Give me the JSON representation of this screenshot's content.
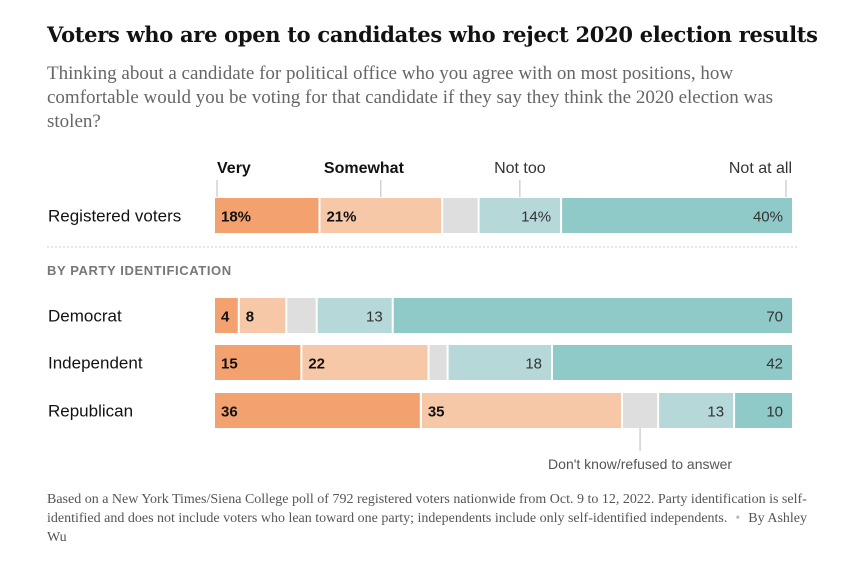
{
  "title": "Voters who are open to candidates who reject 2020 election results",
  "subtitle": "Thinking about a candidate for political office who you agree with on most positions, how comfortable would you be voting for that candidate if they say they think the 2020 election was stolen?",
  "footnote": {
    "text": "Based on a New York Times/Siena College poll of 792 registered voters nationwide from Oct. 9 to 12, 2022. Party identification is self-identified and does not include voters who lean toward one party; independents include only self-identified independents.",
    "byline": "By Ashley Wu"
  },
  "colors": {
    "very": "#f3a16e",
    "somewhat": "#f7c8a7",
    "dk": "#dedede",
    "not_too": "#b6d8d8",
    "not_at_all": "#8fcac8"
  },
  "chart_data": {
    "type": "bar",
    "orientation": "horizontal",
    "stacked": true,
    "categories_order": [
      "Very",
      "Somewhat",
      "Don't know/refused to answer",
      "Not too",
      "Not at all"
    ],
    "legend": [
      {
        "key": "very",
        "label": "Very",
        "bold": true
      },
      {
        "key": "somewhat",
        "label": "Somewhat",
        "bold": true
      },
      {
        "key": "not_too",
        "label": "Not too",
        "bold": false
      },
      {
        "key": "not_at_all",
        "label": "Not at all",
        "bold": false
      }
    ],
    "dk_label": "Don't know/refused to answer",
    "section_label": "BY PARTY IDENTIFICATION",
    "rows": [
      {
        "label": "Registered voters",
        "very": 18,
        "somewhat": 21,
        "dk": 6,
        "not_too": 14,
        "not_at_all": 40,
        "labels": {
          "very": "18%",
          "somewhat": "21%",
          "not_too": "14%",
          "not_at_all": "40%"
        }
      },
      {
        "label": "Democrat",
        "very": 4,
        "somewhat": 8,
        "dk": 5,
        "not_too": 13,
        "not_at_all": 70,
        "labels": {
          "very": "4",
          "somewhat": "8",
          "not_too": "13",
          "not_at_all": "70"
        }
      },
      {
        "label": "Independent",
        "very": 15,
        "somewhat": 22,
        "dk": 3,
        "not_too": 18,
        "not_at_all": 42,
        "labels": {
          "very": "15",
          "somewhat": "22",
          "not_too": "18",
          "not_at_all": "42"
        }
      },
      {
        "label": "Republican",
        "very": 36,
        "somewhat": 35,
        "dk": 6,
        "not_too": 13,
        "not_at_all": 10,
        "labels": {
          "very": "36",
          "somewhat": "35",
          "not_too": "13",
          "not_at_all": "10"
        }
      }
    ]
  }
}
